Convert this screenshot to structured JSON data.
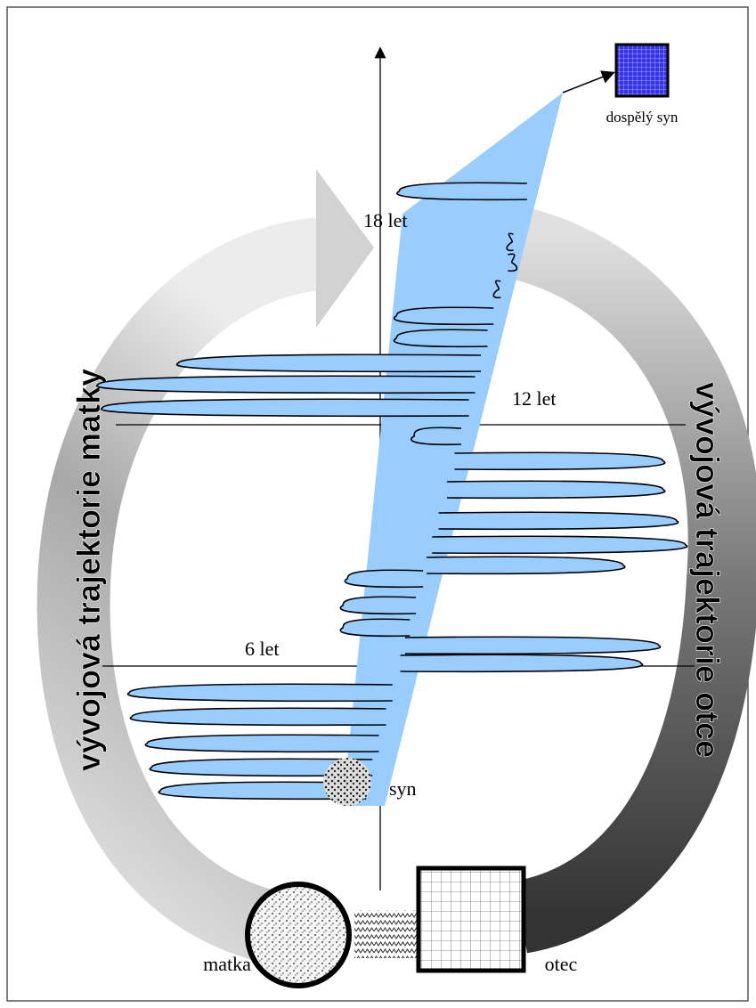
{
  "age_marks": [
    "18 let",
    "12 let",
    "6 let"
  ],
  "nodes": {
    "adult_son": "dospělý syn",
    "son": "syn",
    "mother": "matka",
    "father": "otec"
  },
  "trajectories": {
    "mother": "vývojová trajektorie matky",
    "father": "vývojová trajektorie otce"
  }
}
